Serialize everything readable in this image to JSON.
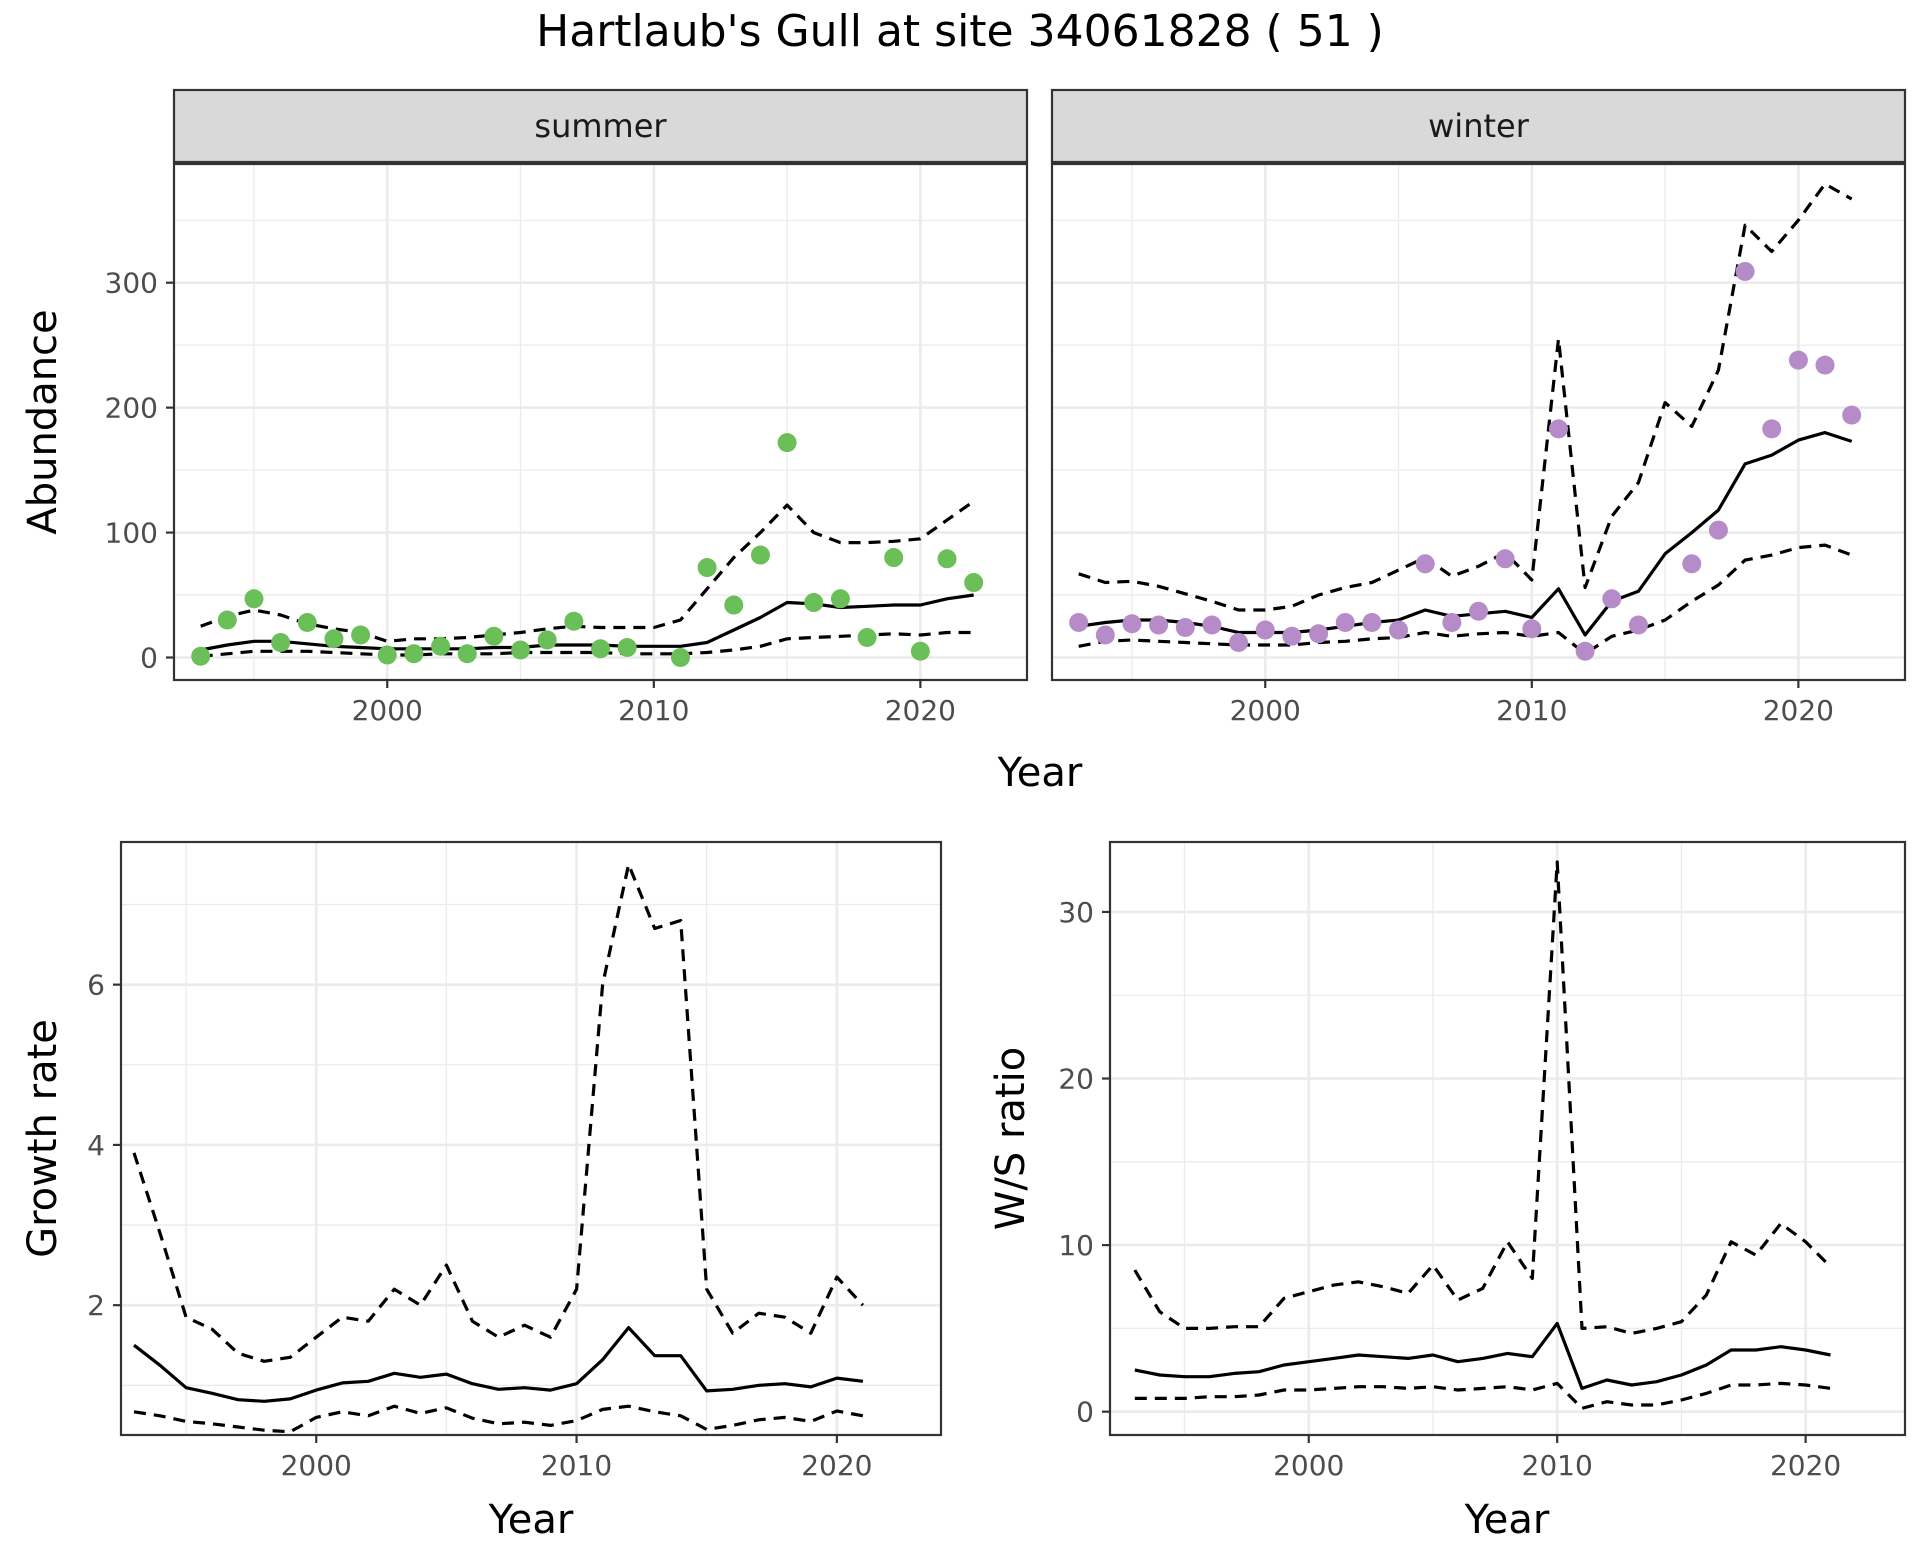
{
  "title": "Hartlaub's Gull at site 34061828 ( 51 )",
  "colors": {
    "summer_points": "#6bbf59",
    "winter_points": "#b58cc8",
    "line": "#000000",
    "panel_border": "#333333",
    "strip_fill": "#d9d9d9",
    "grid": "#ebebeb"
  },
  "chart_data": [
    {
      "type": "scatter",
      "facet": "summer",
      "xlabel": "Year",
      "ylabel": "Abundance",
      "xlim": [
        1992,
        2024
      ],
      "ylim": [
        -18,
        395
      ],
      "xticks": [
        2000,
        2010,
        2020
      ],
      "yticks": [
        0,
        100,
        200,
        300
      ],
      "grid": true,
      "points": {
        "x": [
          1993,
          1994,
          1995,
          1996,
          1997,
          1998,
          1999,
          2000,
          2001,
          2002,
          2003,
          2004,
          2005,
          2006,
          2007,
          2008,
          2009,
          2011,
          2012,
          2013,
          2014,
          2015,
          2016,
          2017,
          2018,
          2019,
          2020,
          2021,
          2022
        ],
        "y": [
          1,
          30,
          47,
          12,
          28,
          15,
          18,
          2,
          3,
          9,
          3,
          17,
          6,
          14,
          29,
          7,
          8,
          0,
          72,
          42,
          82,
          172,
          44,
          47,
          16,
          80,
          5,
          79,
          60
        ]
      },
      "series": [
        {
          "style": "solid",
          "x": [
            1993,
            1994,
            1995,
            1996,
            1997,
            1998,
            1999,
            2000,
            2001,
            2002,
            2003,
            2004,
            2005,
            2006,
            2007,
            2008,
            2009,
            2010,
            2011,
            2012,
            2013,
            2014,
            2015,
            2016,
            2017,
            2018,
            2019,
            2020,
            2021,
            2022
          ],
          "y": [
            6,
            10,
            13,
            13,
            11,
            9,
            8,
            7,
            7,
            7,
            7,
            8,
            8,
            10,
            10,
            10,
            9,
            9,
            9,
            12,
            22,
            32,
            44,
            43,
            40,
            41,
            42,
            42,
            47,
            50
          ]
        },
        {
          "style": "dashed",
          "x": [
            1993,
            1994,
            1995,
            1996,
            1997,
            1998,
            1999,
            2000,
            2001,
            2002,
            2003,
            2004,
            2005,
            2006,
            2007,
            2008,
            2009,
            2010,
            2011,
            2012,
            2013,
            2014,
            2015,
            2016,
            2017,
            2018,
            2019,
            2020,
            2021,
            2022
          ],
          "y": [
            25,
            33,
            38,
            34,
            27,
            23,
            20,
            13,
            15,
            15,
            16,
            18,
            20,
            23,
            25,
            24,
            24,
            24,
            30,
            55,
            80,
            100,
            122,
            100,
            92,
            92,
            93,
            95,
            110,
            125
          ]
        },
        {
          "style": "dashed",
          "x": [
            1993,
            1994,
            1995,
            1996,
            1997,
            1998,
            1999,
            2000,
            2001,
            2002,
            2003,
            2004,
            2005,
            2006,
            2007,
            2008,
            2009,
            2010,
            2011,
            2012,
            2013,
            2014,
            2015,
            2016,
            2017,
            2018,
            2019,
            2020,
            2021,
            2022
          ],
          "y": [
            1,
            3,
            5,
            5,
            5,
            4,
            3,
            2,
            2,
            3,
            3,
            3,
            4,
            4,
            4,
            4,
            3,
            3,
            3,
            4,
            6,
            9,
            15,
            16,
            17,
            18,
            19,
            18,
            20,
            20
          ]
        }
      ]
    },
    {
      "type": "scatter",
      "facet": "winter",
      "xlabel": "Year",
      "ylabel": "Abundance",
      "xlim": [
        1992,
        2024
      ],
      "ylim": [
        -18,
        395
      ],
      "xticks": [
        2000,
        2010,
        2020
      ],
      "yticks": [
        0,
        100,
        200,
        300
      ],
      "grid": true,
      "points": {
        "x": [
          1993,
          1994,
          1995,
          1996,
          1997,
          1998,
          1999,
          2000,
          2001,
          2002,
          2003,
          2004,
          2005,
          2006,
          2007,
          2008,
          2009,
          2010,
          2011,
          2012,
          2013,
          2014,
          2016,
          2017,
          2018,
          2019,
          2020,
          2021,
          2022
        ],
        "y": [
          28,
          18,
          27,
          26,
          24,
          26,
          12,
          22,
          17,
          19,
          28,
          28,
          22,
          75,
          28,
          37,
          79,
          23,
          183,
          5,
          47,
          26,
          75,
          102,
          309,
          183,
          238,
          234,
          194
        ]
      },
      "series": [
        {
          "style": "solid",
          "x": [
            1993,
            1994,
            1995,
            1996,
            1997,
            1998,
            1999,
            2000,
            2001,
            2002,
            2003,
            2004,
            2005,
            2006,
            2007,
            2008,
            2009,
            2010,
            2011,
            2012,
            2013,
            2014,
            2015,
            2016,
            2017,
            2018,
            2019,
            2020,
            2021,
            2022
          ],
          "y": [
            25,
            28,
            30,
            30,
            28,
            25,
            20,
            20,
            20,
            22,
            25,
            28,
            30,
            38,
            33,
            35,
            37,
            32,
            55,
            18,
            45,
            53,
            83,
            100,
            118,
            155,
            162,
            174,
            180,
            173
          ]
        },
        {
          "style": "dashed",
          "x": [
            1993,
            1994,
            1995,
            1996,
            1997,
            1998,
            1999,
            2000,
            2001,
            2002,
            2003,
            2004,
            2005,
            2006,
            2007,
            2008,
            2009,
            2010,
            2011,
            2012,
            2013,
            2014,
            2015,
            2016,
            2017,
            2018,
            2019,
            2020,
            2021,
            2022
          ],
          "y": [
            67,
            60,
            61,
            57,
            51,
            45,
            38,
            38,
            41,
            50,
            56,
            60,
            70,
            80,
            65,
            73,
            84,
            62,
            255,
            56,
            113,
            140,
            204,
            185,
            230,
            346,
            325,
            350,
            379,
            367
          ]
        },
        {
          "style": "dashed",
          "x": [
            1993,
            1994,
            1995,
            1996,
            1997,
            1998,
            1999,
            2000,
            2001,
            2002,
            2003,
            2004,
            2005,
            2006,
            2007,
            2008,
            2009,
            2010,
            2011,
            2012,
            2013,
            2014,
            2015,
            2016,
            2017,
            2018,
            2019,
            2020,
            2021,
            2022
          ],
          "y": [
            9,
            13,
            14,
            13,
            12,
            11,
            10,
            10,
            10,
            12,
            13,
            15,
            16,
            20,
            17,
            19,
            20,
            17,
            20,
            3,
            17,
            22,
            30,
            45,
            58,
            78,
            82,
            88,
            90,
            82
          ]
        }
      ]
    },
    {
      "type": "line",
      "xlabel": "Year",
      "ylabel": "Growth rate",
      "xlim": [
        1992.5,
        2024
      ],
      "ylim": [
        0.38,
        7.78
      ],
      "xticks": [
        2000,
        2010,
        2020
      ],
      "yticks": [
        2,
        4,
        6
      ],
      "grid": true,
      "series": [
        {
          "style": "solid",
          "x": [
            1993,
            1994,
            1995,
            1996,
            1997,
            1998,
            1999,
            2000,
            2001,
            2002,
            2003,
            2004,
            2005,
            2006,
            2007,
            2008,
            2009,
            2010,
            2011,
            2012,
            2013,
            2014,
            2015,
            2016,
            2017,
            2018,
            2019,
            2020,
            2021
          ],
          "y": [
            1.5,
            1.25,
            0.97,
            0.9,
            0.82,
            0.8,
            0.83,
            0.94,
            1.03,
            1.05,
            1.15,
            1.1,
            1.14,
            1.02,
            0.95,
            0.97,
            0.94,
            1.02,
            1.32,
            1.72,
            1.37,
            1.37,
            0.93,
            0.95,
            1.0,
            1.02,
            0.98,
            1.09,
            1.05
          ]
        },
        {
          "style": "dashed",
          "x": [
            1993,
            1994,
            1995,
            1996,
            1997,
            1998,
            1999,
            2000,
            2001,
            2002,
            2003,
            2004,
            2005,
            2006,
            2007,
            2008,
            2009,
            2010,
            2011,
            2012,
            2013,
            2014,
            2015,
            2016,
            2017,
            2018,
            2019,
            2020,
            2021
          ],
          "y": [
            3.9,
            2.9,
            1.85,
            1.7,
            1.4,
            1.3,
            1.35,
            1.6,
            1.85,
            1.8,
            2.2,
            2.0,
            2.5,
            1.8,
            1.6,
            1.75,
            1.6,
            2.2,
            6.0,
            7.5,
            6.7,
            6.8,
            2.2,
            1.65,
            1.9,
            1.85,
            1.65,
            2.35,
            2.0
          ]
        },
        {
          "style": "dashed",
          "x": [
            1993,
            1994,
            1995,
            1996,
            1997,
            1998,
            1999,
            2000,
            2001,
            2002,
            2003,
            2004,
            2005,
            2006,
            2007,
            2008,
            2009,
            2010,
            2011,
            2012,
            2013,
            2014,
            2015,
            2016,
            2017,
            2018,
            2019,
            2020,
            2021
          ],
          "y": [
            0.67,
            0.62,
            0.55,
            0.52,
            0.48,
            0.44,
            0.42,
            0.6,
            0.67,
            0.62,
            0.74,
            0.65,
            0.72,
            0.59,
            0.52,
            0.54,
            0.5,
            0.56,
            0.7,
            0.74,
            0.67,
            0.62,
            0.45,
            0.5,
            0.57,
            0.6,
            0.55,
            0.68,
            0.62
          ]
        }
      ]
    },
    {
      "type": "line",
      "xlabel": "Year",
      "ylabel": "W/S ratio",
      "xlim": [
        1992,
        2024
      ],
      "ylim": [
        -1.4,
        34.2
      ],
      "xticks": [
        2000,
        2010,
        2020
      ],
      "yticks": [
        0,
        10,
        20,
        30
      ],
      "grid": true,
      "series": [
        {
          "style": "solid",
          "x": [
            1993,
            1994,
            1995,
            1996,
            1997,
            1998,
            1999,
            2000,
            2001,
            2002,
            2003,
            2004,
            2005,
            2006,
            2007,
            2008,
            2009,
            2010,
            2011,
            2012,
            2013,
            2014,
            2015,
            2016,
            2017,
            2018,
            2019,
            2020,
            2021
          ],
          "y": [
            2.5,
            2.2,
            2.1,
            2.1,
            2.3,
            2.4,
            2.8,
            3.0,
            3.2,
            3.4,
            3.3,
            3.2,
            3.4,
            3.0,
            3.2,
            3.5,
            3.3,
            5.3,
            1.4,
            1.9,
            1.6,
            1.8,
            2.2,
            2.8,
            3.7,
            3.7,
            3.9,
            3.7,
            3.4
          ]
        },
        {
          "style": "dashed",
          "x": [
            1993,
            1994,
            1995,
            1996,
            1997,
            1998,
            1999,
            2000,
            2001,
            2002,
            2003,
            2004,
            2005,
            2006,
            2007,
            2008,
            2009,
            2010,
            2011,
            2012,
            2013,
            2014,
            2015,
            2016,
            2017,
            2018,
            2019,
            2020,
            2021
          ],
          "y": [
            8.5,
            6.0,
            5.0,
            5.0,
            5.1,
            5.1,
            6.8,
            7.2,
            7.6,
            7.8,
            7.5,
            7.1,
            8.8,
            6.7,
            7.4,
            10.2,
            8.0,
            33,
            5.0,
            5.1,
            4.7,
            5.0,
            5.4,
            7.0,
            10.2,
            9.4,
            11.3,
            10.2,
            8.7
          ]
        },
        {
          "style": "dashed",
          "x": [
            1993,
            1994,
            1995,
            1996,
            1997,
            1998,
            1999,
            2000,
            2001,
            2002,
            2003,
            2004,
            2005,
            2006,
            2007,
            2008,
            2009,
            2010,
            2011,
            2012,
            2013,
            2014,
            2015,
            2016,
            2017,
            2018,
            2019,
            2020,
            2021
          ],
          "y": [
            0.8,
            0.8,
            0.8,
            0.9,
            0.9,
            1.0,
            1.3,
            1.3,
            1.4,
            1.5,
            1.5,
            1.4,
            1.5,
            1.3,
            1.4,
            1.5,
            1.3,
            1.7,
            0.2,
            0.6,
            0.4,
            0.4,
            0.7,
            1.1,
            1.6,
            1.6,
            1.7,
            1.6,
            1.4
          ]
        }
      ]
    }
  ]
}
